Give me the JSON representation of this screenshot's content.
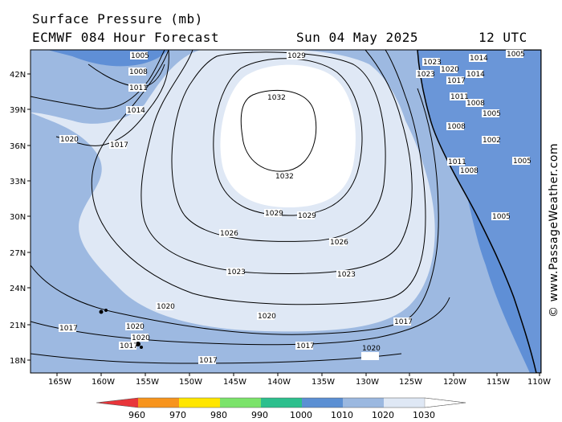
{
  "header": {
    "title": "Surface Pressure (mb)",
    "model_line": "ECMWF 084 Hour Forecast",
    "date": "Sun 04 May 2025",
    "time": "12 UTC"
  },
  "credit": "© www.PassageWeather.com",
  "map": {
    "lat_ticks": [
      "42N",
      "39N",
      "36N",
      "33N",
      "30N",
      "27N",
      "24N",
      "21N",
      "18N"
    ],
    "lon_ticks": [
      "165W",
      "160W",
      "155W",
      "150W",
      "145W",
      "140W",
      "135W",
      "130W",
      "125W",
      "120W",
      "115W",
      "110W"
    ],
    "isobar_labels": [
      {
        "text": "1029",
        "id": "a"
      },
      {
        "text": "1032",
        "id": "b"
      },
      {
        "text": "1032",
        "id": "c"
      },
      {
        "text": "1029",
        "id": "d"
      },
      {
        "text": "1029",
        "id": "e"
      },
      {
        "text": "1026",
        "id": "f"
      },
      {
        "text": "1026",
        "id": "g"
      },
      {
        "text": "1023",
        "id": "h"
      },
      {
        "text": "1023",
        "id": "i"
      },
      {
        "text": "1020",
        "id": "j"
      },
      {
        "text": "1020",
        "id": "k"
      },
      {
        "text": "1020",
        "id": "l"
      },
      {
        "text": "1017",
        "id": "m"
      },
      {
        "text": "1017",
        "id": "n"
      },
      {
        "text": "1017",
        "id": "o"
      },
      {
        "text": "1017",
        "id": "p"
      },
      {
        "text": "1020",
        "id": "q"
      },
      {
        "text": "1020",
        "id": "r"
      },
      {
        "text": "1017",
        "id": "s"
      },
      {
        "text": "1014",
        "id": "t"
      },
      {
        "text": "1011",
        "id": "u"
      },
      {
        "text": "1008",
        "id": "v"
      },
      {
        "text": "1005",
        "id": "w"
      },
      {
        "text": "1020",
        "id": "x"
      },
      {
        "text": "1017",
        "id": "y"
      },
      {
        "text": "1023",
        "id": "z"
      },
      {
        "text": "1023",
        "id": "aa"
      },
      {
        "text": "1020",
        "id": "ab"
      },
      {
        "text": "1017",
        "id": "ac"
      },
      {
        "text": "1014",
        "id": "ad"
      },
      {
        "text": "1011",
        "id": "ae"
      },
      {
        "text": "1008",
        "id": "af"
      },
      {
        "text": "1005",
        "id": "ag"
      },
      {
        "text": "1014",
        "id": "ah"
      },
      {
        "text": "1008",
        "id": "ai"
      },
      {
        "text": "1005",
        "id": "aj"
      },
      {
        "text": "1011",
        "id": "ak"
      },
      {
        "text": "1008",
        "id": "al"
      },
      {
        "text": "1002",
        "id": "am"
      },
      {
        "text": "1005",
        "id": "an"
      },
      {
        "text": "1005",
        "id": "ao"
      }
    ]
  },
  "colorbar": {
    "ticks": [
      "960",
      "970",
      "980",
      "990",
      "1000",
      "1010",
      "1020",
      "1030"
    ],
    "colors": [
      "#e8353a",
      "#f7941d",
      "#ffe600",
      "#7be36a",
      "#2dbf8d",
      "#5b8fd3",
      "#9bb8e0",
      "#dfe8f5",
      "#ffffff"
    ]
  },
  "colors": {
    "sea_low": "#5f8fd6",
    "sea_mid": "#9db9e1",
    "sea_high": "#dfe8f5",
    "sea_peak": "#ffffff"
  }
}
